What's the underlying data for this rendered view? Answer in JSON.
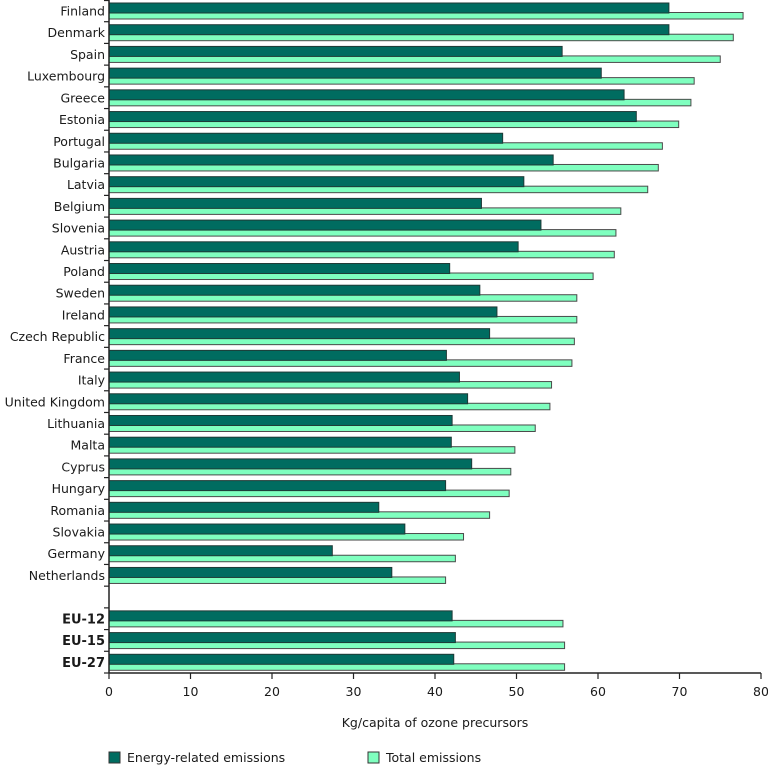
{
  "chart_data": {
    "type": "bar",
    "orientation": "horizontal",
    "title": "",
    "xlabel": "Kg/capita of ozone precursors",
    "ylabel": "",
    "xlim": [
      0,
      80
    ],
    "xticks": [
      0,
      10,
      20,
      30,
      40,
      50,
      60,
      70,
      80
    ],
    "grid": false,
    "legend_position": "bottom",
    "categories": [
      "Finland",
      "Denmark",
      "Spain",
      "Luxembourg",
      "Greece",
      "Estonia",
      "Portugal",
      "Bulgaria",
      "Latvia",
      "Belgium",
      "Slovenia",
      "Austria",
      "Poland",
      "Sweden",
      "Ireland",
      "Czech Republic",
      "France",
      "Italy",
      "United Kingdom",
      "Lithuania",
      "Malta",
      "Cyprus",
      "Hungary",
      "Romania",
      "Slovakia",
      "Germany",
      "Netherlands",
      "",
      "EU-12",
      "EU-15",
      "EU-27"
    ],
    "bold_categories": [
      "EU-12",
      "EU-15",
      "EU-27"
    ],
    "series": [
      {
        "name": "Energy-related emissions",
        "color": "#006c60",
        "values": [
          68.7,
          68.7,
          55.6,
          60.4,
          63.2,
          64.7,
          48.3,
          54.5,
          50.9,
          45.7,
          53.0,
          50.2,
          41.8,
          45.5,
          47.6,
          46.7,
          41.4,
          43.0,
          44.0,
          42.1,
          42.0,
          44.5,
          41.3,
          33.1,
          36.3,
          27.4,
          34.7,
          null,
          42.1,
          42.5,
          42.3
        ]
      },
      {
        "name": "Total emissions",
        "color": "#7fffbf",
        "values": [
          77.8,
          76.6,
          75.0,
          71.8,
          71.4,
          69.9,
          67.9,
          67.4,
          66.1,
          62.8,
          62.2,
          62.0,
          59.4,
          57.4,
          57.4,
          57.1,
          56.8,
          54.3,
          54.1,
          52.3,
          49.8,
          49.3,
          49.1,
          46.7,
          43.5,
          42.5,
          41.3,
          null,
          55.7,
          55.9,
          55.9
        ]
      }
    ]
  }
}
